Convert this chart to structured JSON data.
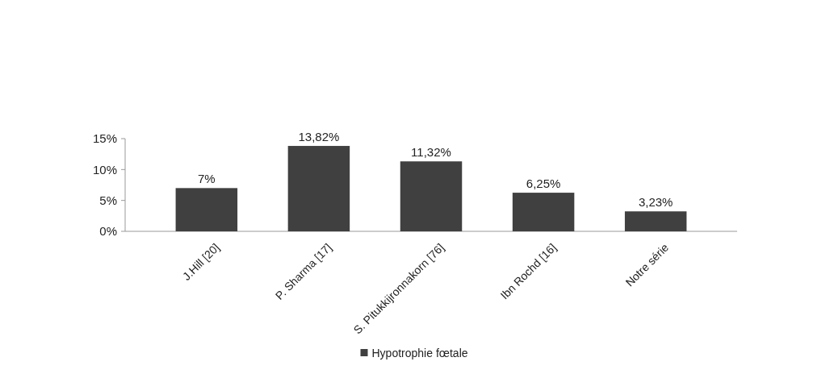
{
  "chart_data": {
    "type": "bar",
    "categories": [
      "J.Hill [20]",
      "P. Sharma [17]",
      "S. Pitukkijronnakorn [76]",
      "Ibn Rochd [16]",
      "Notre série"
    ],
    "series": [
      {
        "name": "Hypotrophie fœtale",
        "color": "#404040",
        "values": [
          7,
          13.82,
          11.32,
          6.25,
          3.23
        ],
        "value_labels": [
          "7%",
          "13,82%",
          "11,32%",
          "6,25%",
          "3,23%"
        ]
      }
    ],
    "ylim": [
      0,
      15
    ],
    "yticks": [
      {
        "value": 0,
        "label": "0%"
      },
      {
        "value": 5,
        "label": "5%"
      },
      {
        "value": 10,
        "label": "10%"
      },
      {
        "value": 15,
        "label": "15%"
      }
    ],
    "legend": "bottom"
  }
}
